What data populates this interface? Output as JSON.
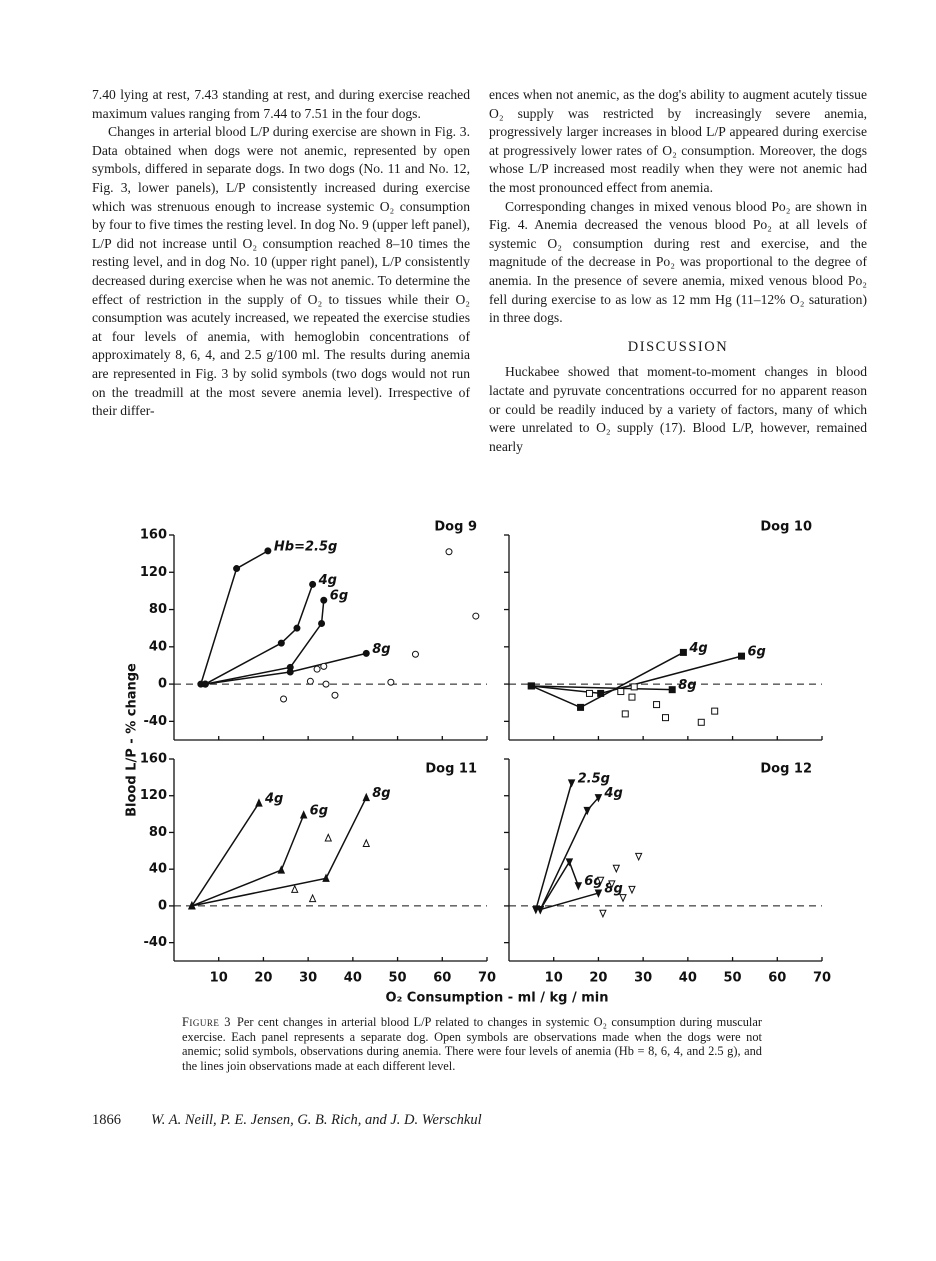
{
  "text": {
    "left_column": [
      "7.40 lying at rest, 7.43 standing at rest, and during exercise reached maximum values ranging from 7.44 to 7.51 in the four dogs.",
      "Changes in arterial blood L/P during exercise are shown in Fig. 3. Data obtained when dogs were not anemic, represented by open symbols, differed in separate dogs. In two dogs (No. 11 and No. 12, Fig. 3, lower panels), L/P consistently increased during exercise which was strenuous enough to increase systemic O₂ consumption by four to five times the resting level. In dog No. 9 (upper left panel), L/P did not increase until O₂ consumption reached 8–10 times the resting level, and in dog No. 10 (upper right panel), L/P consistently decreased during exercise when he was not anemic. To determine the effect of restriction in the supply of O₂ to tissues while their O₂ consumption was acutely increased, we repeated the exercise studies at four levels of anemia, with hemoglobin concentrations of approximately 8, 6, 4, and 2.5 g/100 ml. The results during anemia are represented in Fig. 3 by solid symbols (two dogs would not run on the treadmill at the most severe anemia level). Irrespective of their differ-"
    ],
    "right_column": [
      "ences when not anemic, as the dog's ability to augment acutely tissue O₂ supply was restricted by increasingly severe anemia, progressively larger increases in blood L/P appeared during exercise at progressively lower rates of O₂ consumption. Moreover, the dogs whose L/P increased most readily when they were not anemic had the most pronounced effect from anemia.",
      "Corresponding changes in mixed venous blood Po₂ are shown in Fig. 4. Anemia decreased the venous blood Po₂ at all levels of systemic O₂ consumption during rest and exercise, and the magnitude of the decrease in Po₂ was proportional to the degree of anemia. In the presence of severe anemia, mixed venous blood Po₂ fell during exercise to as low as 12 mm Hg (11–12% O₂ saturation) in three dogs."
    ],
    "heading": "DISCUSSION",
    "right_after_heading": "Huckabee showed that moment-to-moment changes in blood lactate and pyruvate concentrations occurred for no apparent reason or could be readily induced by a variety of factors, many of which were unrelated to O₂ supply (17). Blood L/P, however, remained nearly",
    "caption_label": "Figure 3",
    "caption": "Per cent changes in arterial blood L/P related to changes in systemic O₂ consumption during muscular exercise. Each panel represents a separate dog. Open symbols are observations made when the dogs were not anemic; solid symbols, observations during anemia. There were four levels of anemia (Hb = 8, 6, 4, and 2.5 g), and the lines join observations made at each different level.",
    "page_number": "1866",
    "authors": "W. A. Neill, P. E. Jensen, G. B. Rich, and J. D. Werschkul"
  },
  "figure": {
    "y_label": "Blood L/P - % change",
    "x_label": "O₂ Consumption - ml / kg / min"
  },
  "chart_data": [
    {
      "type": "line",
      "title": "Dog 9",
      "color": "#111",
      "marker": "circle",
      "xlim": [
        0,
        70
      ],
      "xticks": [
        10,
        20,
        30,
        40,
        50,
        60,
        70
      ],
      "ylim": [
        -60,
        160
      ],
      "yticks": [
        -40,
        0,
        40,
        80,
        120,
        160
      ],
      "series": [
        {
          "name": "Hb=2.5g",
          "x": [
            6,
            14,
            21
          ],
          "values": [
            0,
            124,
            143
          ]
        },
        {
          "name": "4g",
          "x": [
            7,
            24,
            27.5,
            31
          ],
          "values": [
            0,
            44,
            60,
            107
          ]
        },
        {
          "name": "6g",
          "x": [
            7,
            26,
            33,
            33.5
          ],
          "values": [
            0,
            18,
            65,
            90
          ]
        },
        {
          "name": "8g",
          "x": [
            7,
            26,
            43
          ],
          "values": [
            0,
            13,
            33
          ]
        }
      ],
      "open_points": {
        "x": [
          61.5,
          67.5,
          54,
          32,
          33.5,
          30.5,
          34,
          36,
          24.5,
          48.5
        ],
        "values": [
          142,
          73,
          32,
          16,
          19,
          3,
          0,
          -12,
          -16,
          2
        ]
      }
    },
    {
      "type": "line",
      "title": "Dog 10",
      "color": "#111",
      "marker": "square",
      "xlim": [
        0,
        70
      ],
      "xticks": [
        10,
        20,
        30,
        40,
        50,
        60,
        70
      ],
      "ylim": [
        -60,
        160
      ],
      "yticks": [
        -40,
        0,
        40,
        80,
        120,
        160
      ],
      "series": [
        {
          "name": "4g",
          "x": [
            5,
            16,
            39
          ],
          "values": [
            -2,
            -25,
            34
          ]
        },
        {
          "name": "6g",
          "x": [
            5,
            20.5,
            52
          ],
          "values": [
            -2,
            -10,
            30
          ]
        },
        {
          "name": "8g",
          "x": [
            5,
            36.5
          ],
          "values": [
            -2,
            -6
          ]
        }
      ],
      "open_points": {
        "x": [
          26,
          35,
          33,
          43,
          46,
          27.5,
          25,
          28,
          18
        ],
        "values": [
          -32,
          -36,
          -22,
          -41,
          -29,
          -14,
          -8,
          -3,
          -10
        ]
      }
    },
    {
      "type": "line",
      "title": "Dog 11",
      "color": "#111",
      "marker": "triangle",
      "xlim": [
        0,
        70
      ],
      "xticks": [
        10,
        20,
        30,
        40,
        50,
        60,
        70
      ],
      "ylim": [
        -60,
        160
      ],
      "yticks": [
        -40,
        0,
        40,
        80,
        120,
        160
      ],
      "series": [
        {
          "name": "4g",
          "x": [
            4,
            19
          ],
          "values": [
            0,
            112
          ]
        },
        {
          "name": "6g",
          "x": [
            4,
            24,
            29
          ],
          "values": [
            0,
            39,
            99
          ]
        },
        {
          "name": "8g",
          "x": [
            4,
            34,
            43
          ],
          "values": [
            0,
            30,
            118
          ]
        }
      ],
      "open_points": {
        "x": [
          27,
          31,
          34.5,
          43
        ],
        "values": [
          18,
          8,
          74,
          68
        ]
      }
    },
    {
      "type": "line",
      "title": "Dog 12",
      "color": "#111",
      "marker": "triangle-down",
      "xlim": [
        0,
        70
      ],
      "xticks": [
        10,
        20,
        30,
        40,
        50,
        60,
        70
      ],
      "ylim": [
        -60,
        160
      ],
      "yticks": [
        -40,
        0,
        40,
        80,
        120,
        160
      ],
      "series": [
        {
          "name": "2.5g",
          "x": [
            6,
            14
          ],
          "values": [
            -4,
            134
          ]
        },
        {
          "name": "4g",
          "x": [
            7,
            17.5,
            20
          ],
          "values": [
            -4,
            104,
            118
          ]
        },
        {
          "name": "6g",
          "x": [
            7,
            13.5,
            15.5
          ],
          "values": [
            -4,
            48,
            22
          ]
        },
        {
          "name": "8g",
          "x": [
            7,
            20
          ],
          "values": [
            -4,
            14
          ]
        }
      ],
      "open_points": {
        "x": [
          24,
          29,
          20.5,
          23,
          27.5,
          25.5,
          21
        ],
        "values": [
          41,
          54,
          28,
          24,
          18,
          9,
          -8
        ]
      }
    }
  ]
}
